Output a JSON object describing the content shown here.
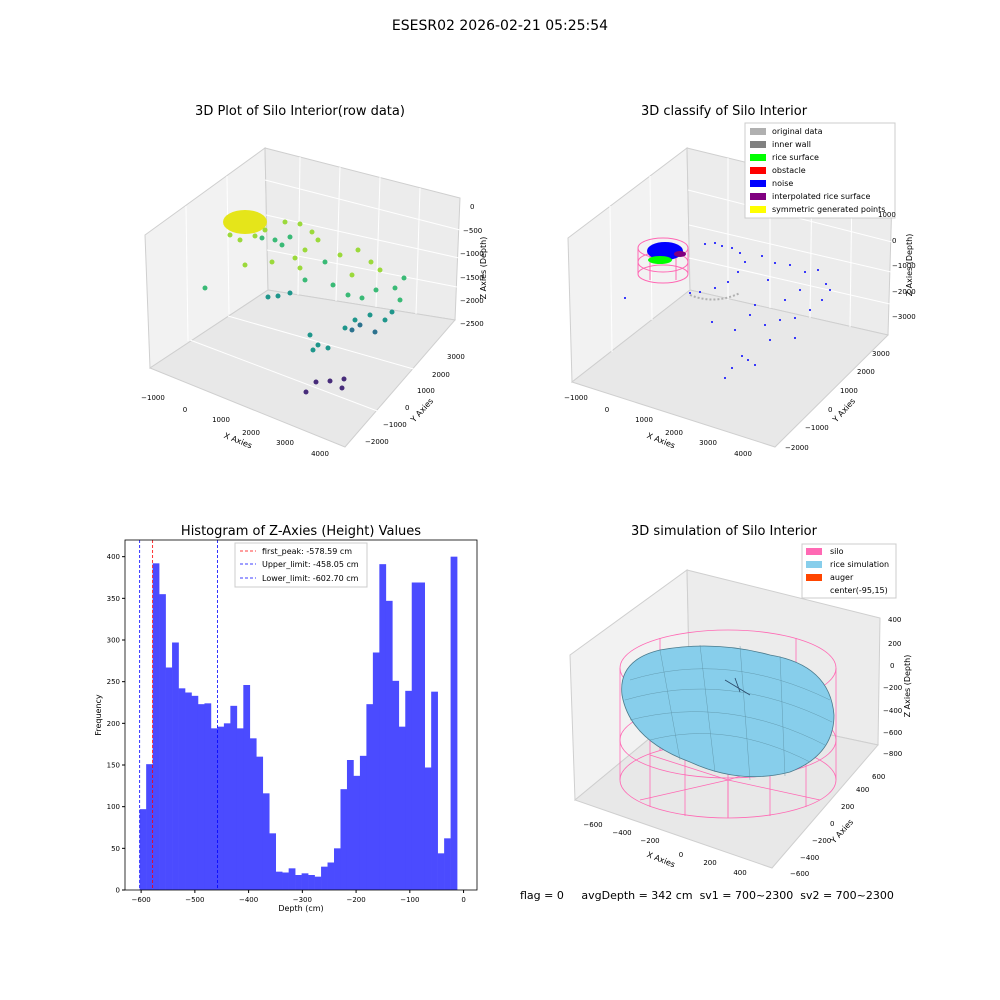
{
  "suptitle": "ESESR02 2026-02-21 05:25:54",
  "panels": {
    "raw": {
      "title": "3D Plot of Silo Interior(row data)",
      "xlabel": "X Axies",
      "ylabel": "Y Axies",
      "zlabel": "Z Axies (Depth)",
      "xticks": [
        "−1000",
        "0",
        "1000",
        "2000",
        "3000",
        "4000"
      ],
      "yticks": [
        "−2000",
        "−1000",
        "0",
        "1000",
        "2000",
        "3000"
      ],
      "zticks": [
        "0",
        "−500",
        "−1000",
        "−1500",
        "−2000",
        "−2500"
      ]
    },
    "classify": {
      "title": "3D classify of Silo Interior",
      "xlabel": "X Axies",
      "ylabel": "Y Axies",
      "zlabel": "Z Axies (Depth)",
      "xticks": [
        "−1000",
        "0",
        "1000",
        "2000",
        "3000",
        "4000"
      ],
      "yticks": [
        "−2000",
        "−1000",
        "0",
        "1000",
        "2000",
        "3000"
      ],
      "zticks": [
        "1000",
        "0",
        "−1000",
        "−2000",
        "−3000"
      ],
      "legend": [
        {
          "label": "original data",
          "color": "#b0b0b0"
        },
        {
          "label": "inner wall",
          "color": "#808080"
        },
        {
          "label": "rice surface",
          "color": "#00ff00"
        },
        {
          "label": "obstacle",
          "color": "#ff0000"
        },
        {
          "label": "noise",
          "color": "#0000ff"
        },
        {
          "label": "interpolated rice surface",
          "color": "#800080"
        },
        {
          "label": "symmetric generated points",
          "color": "#ffff00"
        }
      ]
    },
    "simulation": {
      "title": "3D simulation of Silo Interior",
      "xlabel": "X Axies",
      "ylabel": "Y Axies",
      "zlabel": "Z Axies (Depth)",
      "xticks": [
        "−600",
        "−400",
        "−200",
        "0",
        "200",
        "400"
      ],
      "yticks": [
        "−600",
        "−400",
        "−200",
        "0",
        "200",
        "400",
        "600"
      ],
      "zticks": [
        "400",
        "200",
        "0",
        "−200",
        "−400",
        "−600",
        "−800"
      ],
      "legend": [
        {
          "label": "silo",
          "color": "#ff69b4"
        },
        {
          "label": "rice simulation",
          "color": "#87ceeb"
        },
        {
          "label": "auger",
          "color": "#ff4500"
        },
        {
          "label": "center(-95,15)",
          "color": "#ffffff"
        }
      ]
    }
  },
  "status": {
    "flag": "flag = 0",
    "avg": "avgDepth = 342 cm",
    "sv1": "sv1 = 700~2300",
    "sv2": "sv2 = 700~2300"
  },
  "chart_data": {
    "type": "bar",
    "title": "Histogram of Z-Axies (Height) Values",
    "xlabel": "Depth (cm)",
    "ylabel": "Frequency",
    "xlim": [
      -630,
      25
    ],
    "ylim": [
      0,
      420
    ],
    "xticks": [
      -600,
      -500,
      -400,
      -300,
      -200,
      -100,
      0
    ],
    "yticks": [
      0,
      50,
      100,
      150,
      200,
      250,
      300,
      350,
      400
    ],
    "bin_start": -602.7,
    "bin_width": 12.054,
    "bar_color": "#4b4bff",
    "values": [
      97,
      151,
      392,
      355,
      267,
      297,
      242,
      237,
      233,
      223,
      224,
      194,
      196,
      200,
      221,
      194,
      246,
      182,
      160,
      116,
      68,
      22,
      21,
      26,
      18,
      20,
      18,
      16,
      28,
      33,
      50,
      121,
      156,
      137,
      161,
      223,
      285,
      391,
      347,
      251,
      196,
      239,
      369,
      369,
      147,
      238,
      44,
      62,
      400
    ],
    "lines": [
      {
        "label": "first_peak: -578.59 cm",
        "x": -578.59,
        "color": "#ff0000"
      },
      {
        "label": "Upper_limit: -458.05 cm",
        "x": -458.05,
        "color": "#0000ff"
      },
      {
        "label": "Lower_limit: -602.70 cm",
        "x": -602.7,
        "color": "#0000ff"
      }
    ]
  }
}
